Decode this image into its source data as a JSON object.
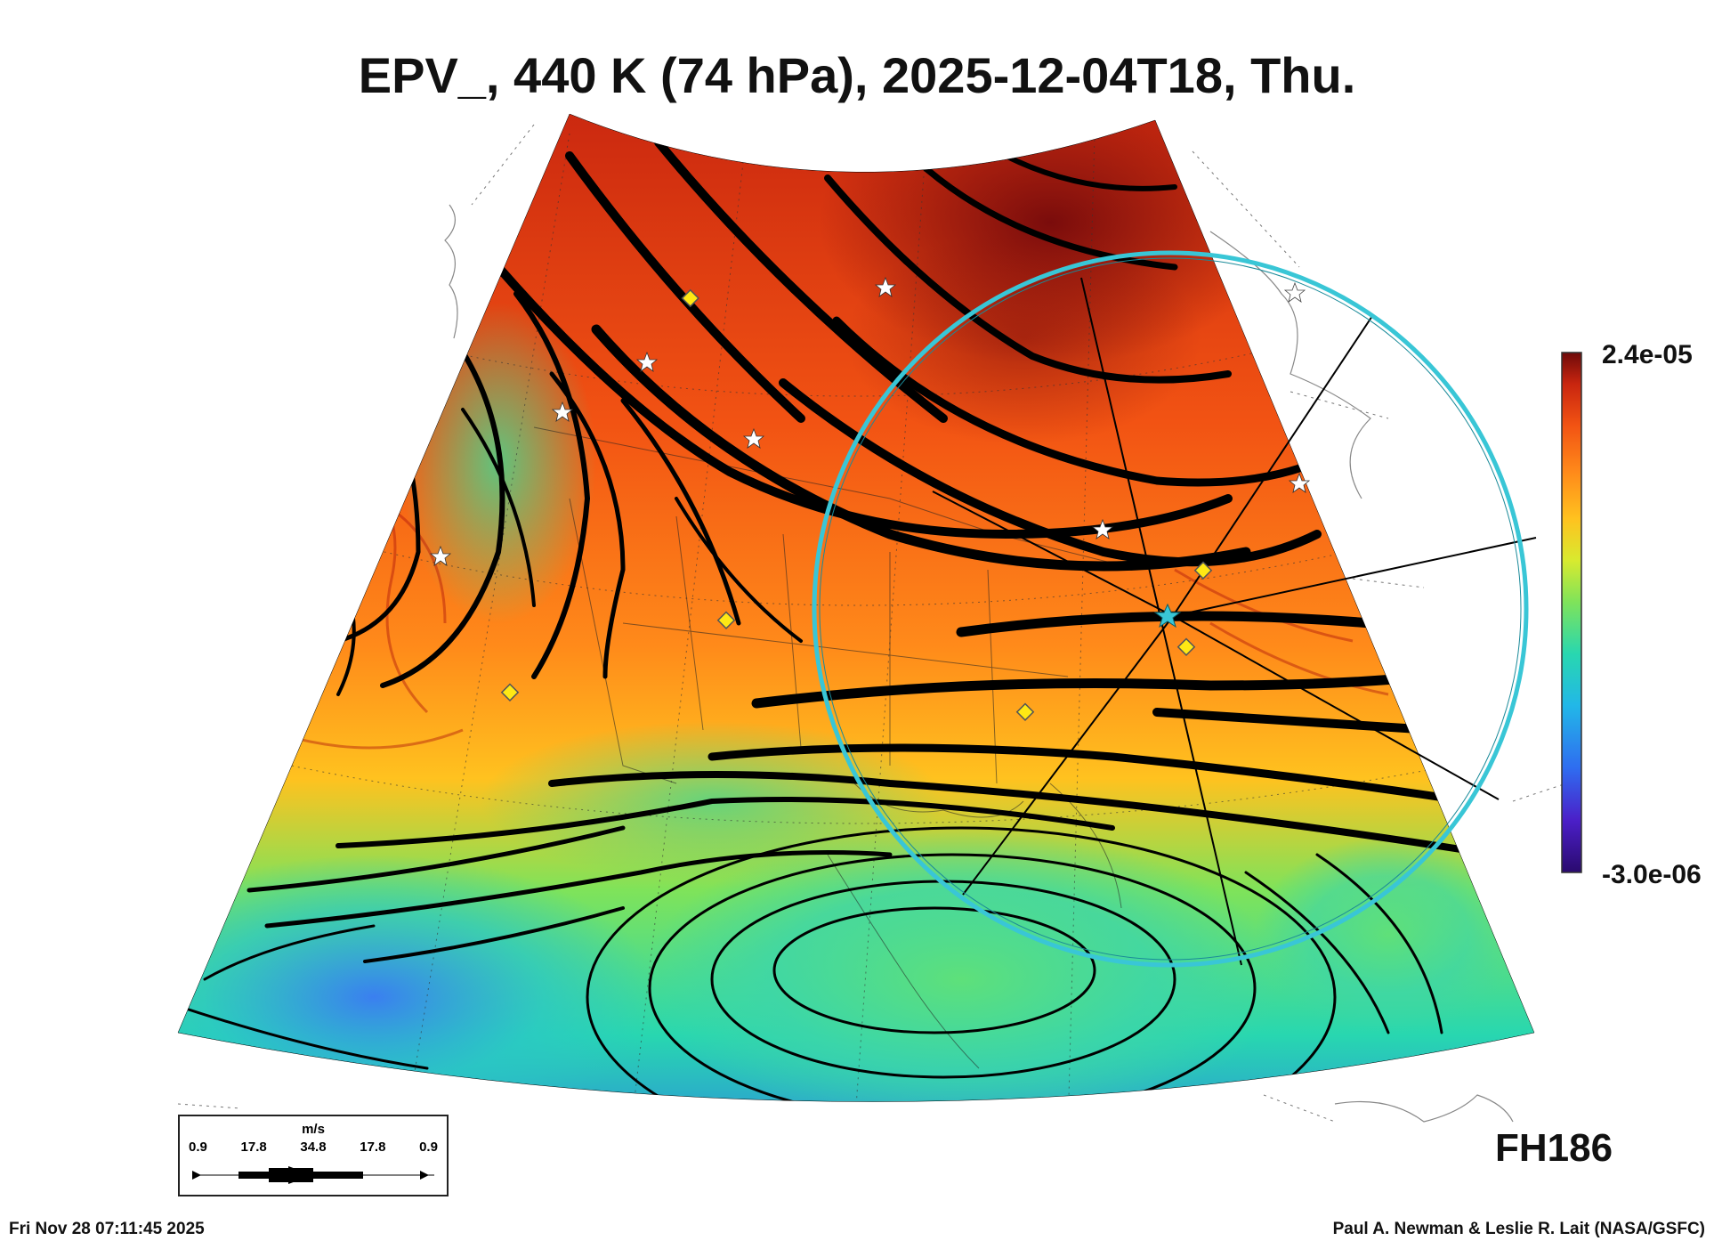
{
  "title": "EPV_, 440 K (74 hPa), 2025-12-04T18, Thu.",
  "colorbar": {
    "max_label": "2.4e-05",
    "min_label": "-3.0e-06",
    "colors": [
      "#2a0a6e",
      "#4b1fc8",
      "#2f6cf0",
      "#22b7e8",
      "#28d7b0",
      "#7fe35a",
      "#d8ea2f",
      "#ffc21f",
      "#ff8a1a",
      "#f25313",
      "#c8250f",
      "#6e0a0a"
    ]
  },
  "forecast_hour": "FH186",
  "wind_legend": {
    "units": "m/s",
    "ticks": [
      "0.9",
      "17.8",
      "34.8",
      "17.8",
      "0.9"
    ]
  },
  "footer": {
    "left": "Fri Nov 28 07:11:45 2025",
    "right": "Paul A. Newman & Leslie R. Lait (NASA/GSFC)"
  },
  "colors": {
    "ring": "#39c6d6",
    "marker_diamond": "#ffe814",
    "streamline": "#000000"
  }
}
